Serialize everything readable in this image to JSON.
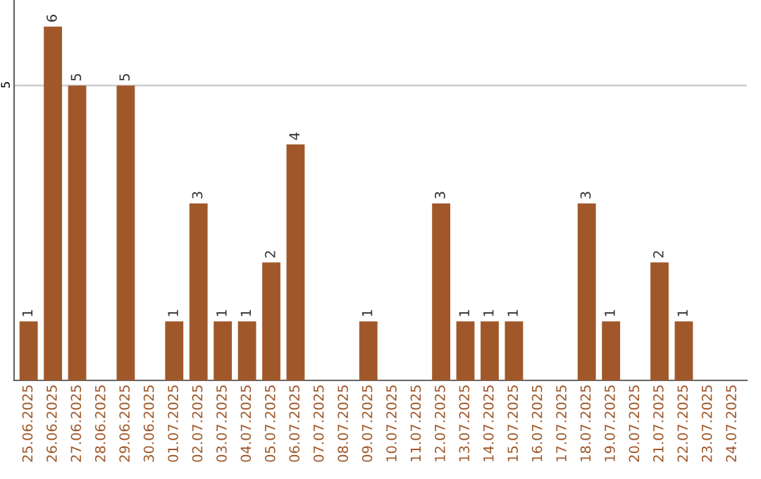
{
  "chart_data": {
    "type": "bar",
    "categories": [
      "25.06.2025",
      "26.06.2025",
      "27.06.2025",
      "28.06.2025",
      "29.06.2025",
      "30.06.2025",
      "01.07.2025",
      "02.07.2025",
      "03.07.2025",
      "04.07.2025",
      "05.07.2025",
      "06.07.2025",
      "07.07.2025",
      "08.07.2025",
      "09.07.2025",
      "10.07.2025",
      "11.07.2025",
      "12.07.2025",
      "13.07.2025",
      "14.07.2025",
      "15.07.2025",
      "16.07.2025",
      "17.07.2025",
      "18.07.2025",
      "19.07.2025",
      "20.07.2025",
      "21.07.2025",
      "22.07.2025",
      "23.07.2025",
      "24.07.2025"
    ],
    "values": [
      1,
      6,
      5,
      0,
      5,
      0,
      1,
      3,
      1,
      1,
      2,
      4,
      0,
      0,
      1,
      0,
      0,
      3,
      1,
      1,
      1,
      0,
      0,
      3,
      1,
      0,
      2,
      1,
      0,
      0
    ],
    "value_labels": [
      "1",
      "6",
      "5",
      null,
      "5",
      null,
      "1",
      "3",
      "1",
      "1",
      "2",
      "4",
      null,
      null,
      "1",
      null,
      null,
      "3",
      "1",
      "1",
      "1",
      null,
      null,
      "3",
      "1",
      null,
      "2",
      "1",
      null,
      null
    ],
    "color": "#a0582a",
    "ylim": [
      0,
      6.45
    ],
    "yticks": [
      5
    ],
    "grid": "y"
  }
}
